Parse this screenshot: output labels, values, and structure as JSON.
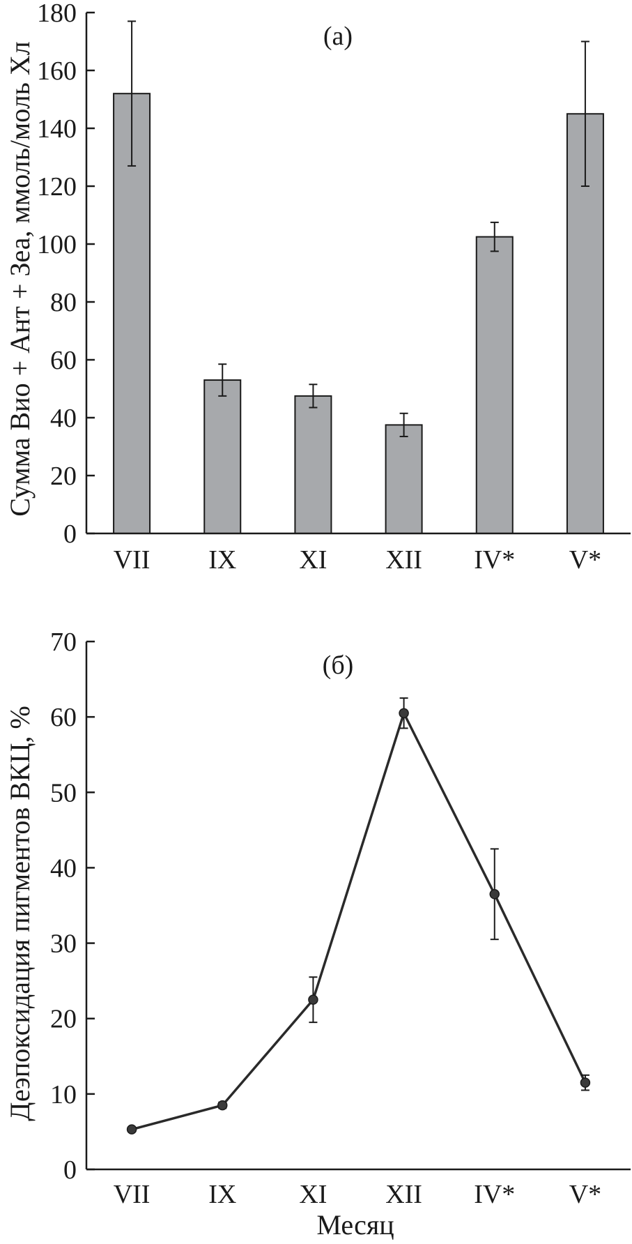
{
  "chart_data": [
    {
      "type": "bar",
      "panel_label": "(а)",
      "categories": [
        "VII",
        "IX",
        "XI",
        "XII",
        "IV*",
        "V*"
      ],
      "values": [
        152,
        53,
        47.5,
        37.5,
        102.5,
        145
      ],
      "errors": [
        25,
        5.5,
        4,
        4,
        5,
        25
      ],
      "ylabel": "Сумма Вио + Ант + Зеа, ммоль/моль Хл",
      "xlabel": "",
      "ylim": [
        0,
        180
      ],
      "yticks": [
        "0",
        "20",
        "40",
        "60",
        "80",
        "100",
        "120",
        "140",
        "160",
        "180"
      ],
      "bar_color": "#a7a9ac",
      "grid": false
    },
    {
      "type": "line",
      "panel_label": "(б)",
      "categories": [
        "VII",
        "IX",
        "XI",
        "XII",
        "IV*",
        "V*"
      ],
      "values": [
        5.3,
        8.5,
        22.5,
        60.5,
        36.5,
        11.5
      ],
      "errors": [
        0.3,
        0.4,
        3,
        2,
        6,
        1
      ],
      "ylabel": "Деэпоксидация пигментов ВКЦ, %",
      "xlabel": "Месяц",
      "ylim": [
        0,
        70
      ],
      "yticks": [
        "0",
        "10",
        "20",
        "30",
        "40",
        "50",
        "60",
        "70"
      ],
      "line_color": "#2a2a2a",
      "grid": false
    }
  ]
}
